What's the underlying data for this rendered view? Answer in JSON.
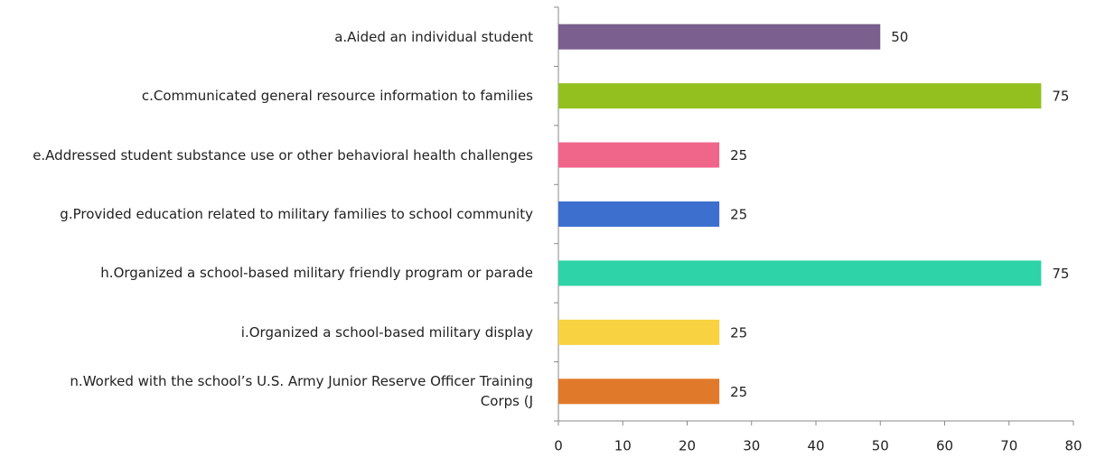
{
  "chart_data": {
    "type": "bar",
    "orientation": "horizontal",
    "categories": [
      "a.Aided an individual student",
      "c.Communicated general resource information to families",
      "e.Addressed student substance use or other behavioral health challenges",
      "g.Provided education related to military families to school community",
      "h.Organized a school-based military friendly program or parade",
      "i.Organized a school-based military display",
      "n.Worked with the school’s U.S. Army Junior Reserve Officer Training Corps (J"
    ],
    "values": [
      50,
      75,
      25,
      25,
      75,
      25,
      25
    ],
    "colors": [
      "#7b5f8f",
      "#93c01f",
      "#f0668a",
      "#3d6fce",
      "#2ed3a8",
      "#f8d240",
      "#e07a2a"
    ],
    "xlim": [
      0,
      80
    ],
    "xticks": [
      0,
      10,
      20,
      30,
      40,
      50,
      60,
      70,
      80
    ],
    "grid": false
  }
}
